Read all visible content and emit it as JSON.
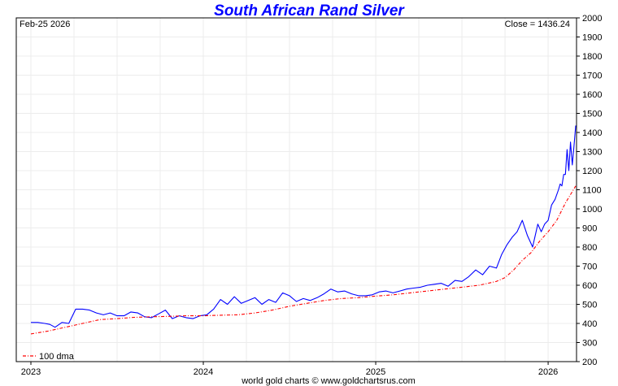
{
  "chart_data": {
    "type": "line",
    "title": "South African Rand Silver",
    "date_label": "Feb-25  2026",
    "close_label": "Close = 1436.24",
    "footer": "world gold charts © www.goldchartsrus.com",
    "legend": [
      {
        "name": "100 dma",
        "position": "bottom-left"
      }
    ],
    "ylim": [
      200,
      2000
    ],
    "ytick_labels": [
      "200",
      "300",
      "400",
      "500",
      "600",
      "700",
      "800",
      "900",
      "1000",
      "1100",
      "1200",
      "1300",
      "1400",
      "1500",
      "1600",
      "1700",
      "1800",
      "1900",
      "2000"
    ],
    "xlim": [
      2023.0,
      2026.16
    ],
    "xtick_labels": [
      "2023",
      "2024",
      "2025",
      "2026"
    ],
    "xtick_values": [
      2023.0,
      2024.0,
      2025.0,
      2026.0
    ],
    "grid": true,
    "colors": {
      "price": "#0000ff",
      "dma": "#ff0000",
      "title": "#0000ff"
    },
    "series": [
      {
        "name": "price",
        "x": [
          2023.0,
          2023.04,
          2023.08,
          2023.11,
          2023.14,
          2023.18,
          2023.22,
          2023.26,
          2023.3,
          2023.34,
          2023.38,
          2023.42,
          2023.46,
          2023.5,
          2023.54,
          2023.58,
          2023.62,
          2023.66,
          2023.7,
          2023.74,
          2023.78,
          2023.82,
          2023.86,
          2023.9,
          2023.94,
          2023.98,
          2024.02,
          2024.06,
          2024.1,
          2024.14,
          2024.18,
          2024.22,
          2024.26,
          2024.3,
          2024.34,
          2024.38,
          2024.42,
          2024.46,
          2024.5,
          2024.54,
          2024.58,
          2024.62,
          2024.66,
          2024.7,
          2024.74,
          2024.78,
          2024.82,
          2024.86,
          2024.9,
          2024.94,
          2024.98,
          2025.02,
          2025.06,
          2025.1,
          2025.14,
          2025.18,
          2025.22,
          2025.26,
          2025.3,
          2025.34,
          2025.38,
          2025.42,
          2025.46,
          2025.5,
          2025.54,
          2025.58,
          2025.62,
          2025.66,
          2025.7,
          2025.73,
          2025.76,
          2025.79,
          2025.82,
          2025.85,
          2025.88,
          2025.91,
          2025.94,
          2025.96,
          2025.98,
          2026.0,
          2026.02,
          2026.04,
          2026.06,
          2026.07,
          2026.08,
          2026.09,
          2026.1,
          2026.11,
          2026.12,
          2026.13,
          2026.14,
          2026.15,
          2026.16
        ],
        "values": [
          405,
          405,
          400,
          395,
          380,
          405,
          400,
          475,
          475,
          470,
          455,
          445,
          455,
          440,
          440,
          460,
          455,
          435,
          430,
          450,
          470,
          425,
          440,
          430,
          425,
          440,
          445,
          475,
          525,
          500,
          540,
          505,
          520,
          535,
          500,
          525,
          510,
          560,
          545,
          515,
          530,
          520,
          535,
          555,
          580,
          565,
          570,
          555,
          545,
          545,
          550,
          565,
          570,
          560,
          570,
          580,
          585,
          590,
          600,
          605,
          610,
          595,
          625,
          620,
          645,
          680,
          655,
          700,
          690,
          760,
          810,
          850,
          880,
          940,
          860,
          800,
          920,
          880,
          920,
          940,
          1020,
          1050,
          1100,
          1130,
          1120,
          1180,
          1180,
          1310,
          1200,
          1350,
          1230,
          1330,
          1436.24
        ]
      },
      {
        "name": "100 dma",
        "x": [
          2023.0,
          2023.1,
          2023.2,
          2023.3,
          2023.4,
          2023.5,
          2023.6,
          2023.7,
          2023.8,
          2023.9,
          2024.0,
          2024.1,
          2024.2,
          2024.3,
          2024.4,
          2024.5,
          2024.6,
          2024.7,
          2024.8,
          2024.9,
          2025.0,
          2025.1,
          2025.2,
          2025.3,
          2025.4,
          2025.5,
          2025.6,
          2025.7,
          2025.75,
          2025.8,
          2025.85,
          2025.9,
          2025.95,
          2026.0,
          2026.05,
          2026.1,
          2026.16
        ],
        "values": [
          345,
          360,
          380,
          400,
          420,
          425,
          432,
          435,
          437,
          440,
          440,
          443,
          445,
          455,
          470,
          490,
          505,
          520,
          530,
          535,
          543,
          550,
          560,
          570,
          580,
          590,
          600,
          620,
          640,
          680,
          730,
          770,
          830,
          880,
          940,
          1030,
          1120
        ]
      }
    ]
  }
}
